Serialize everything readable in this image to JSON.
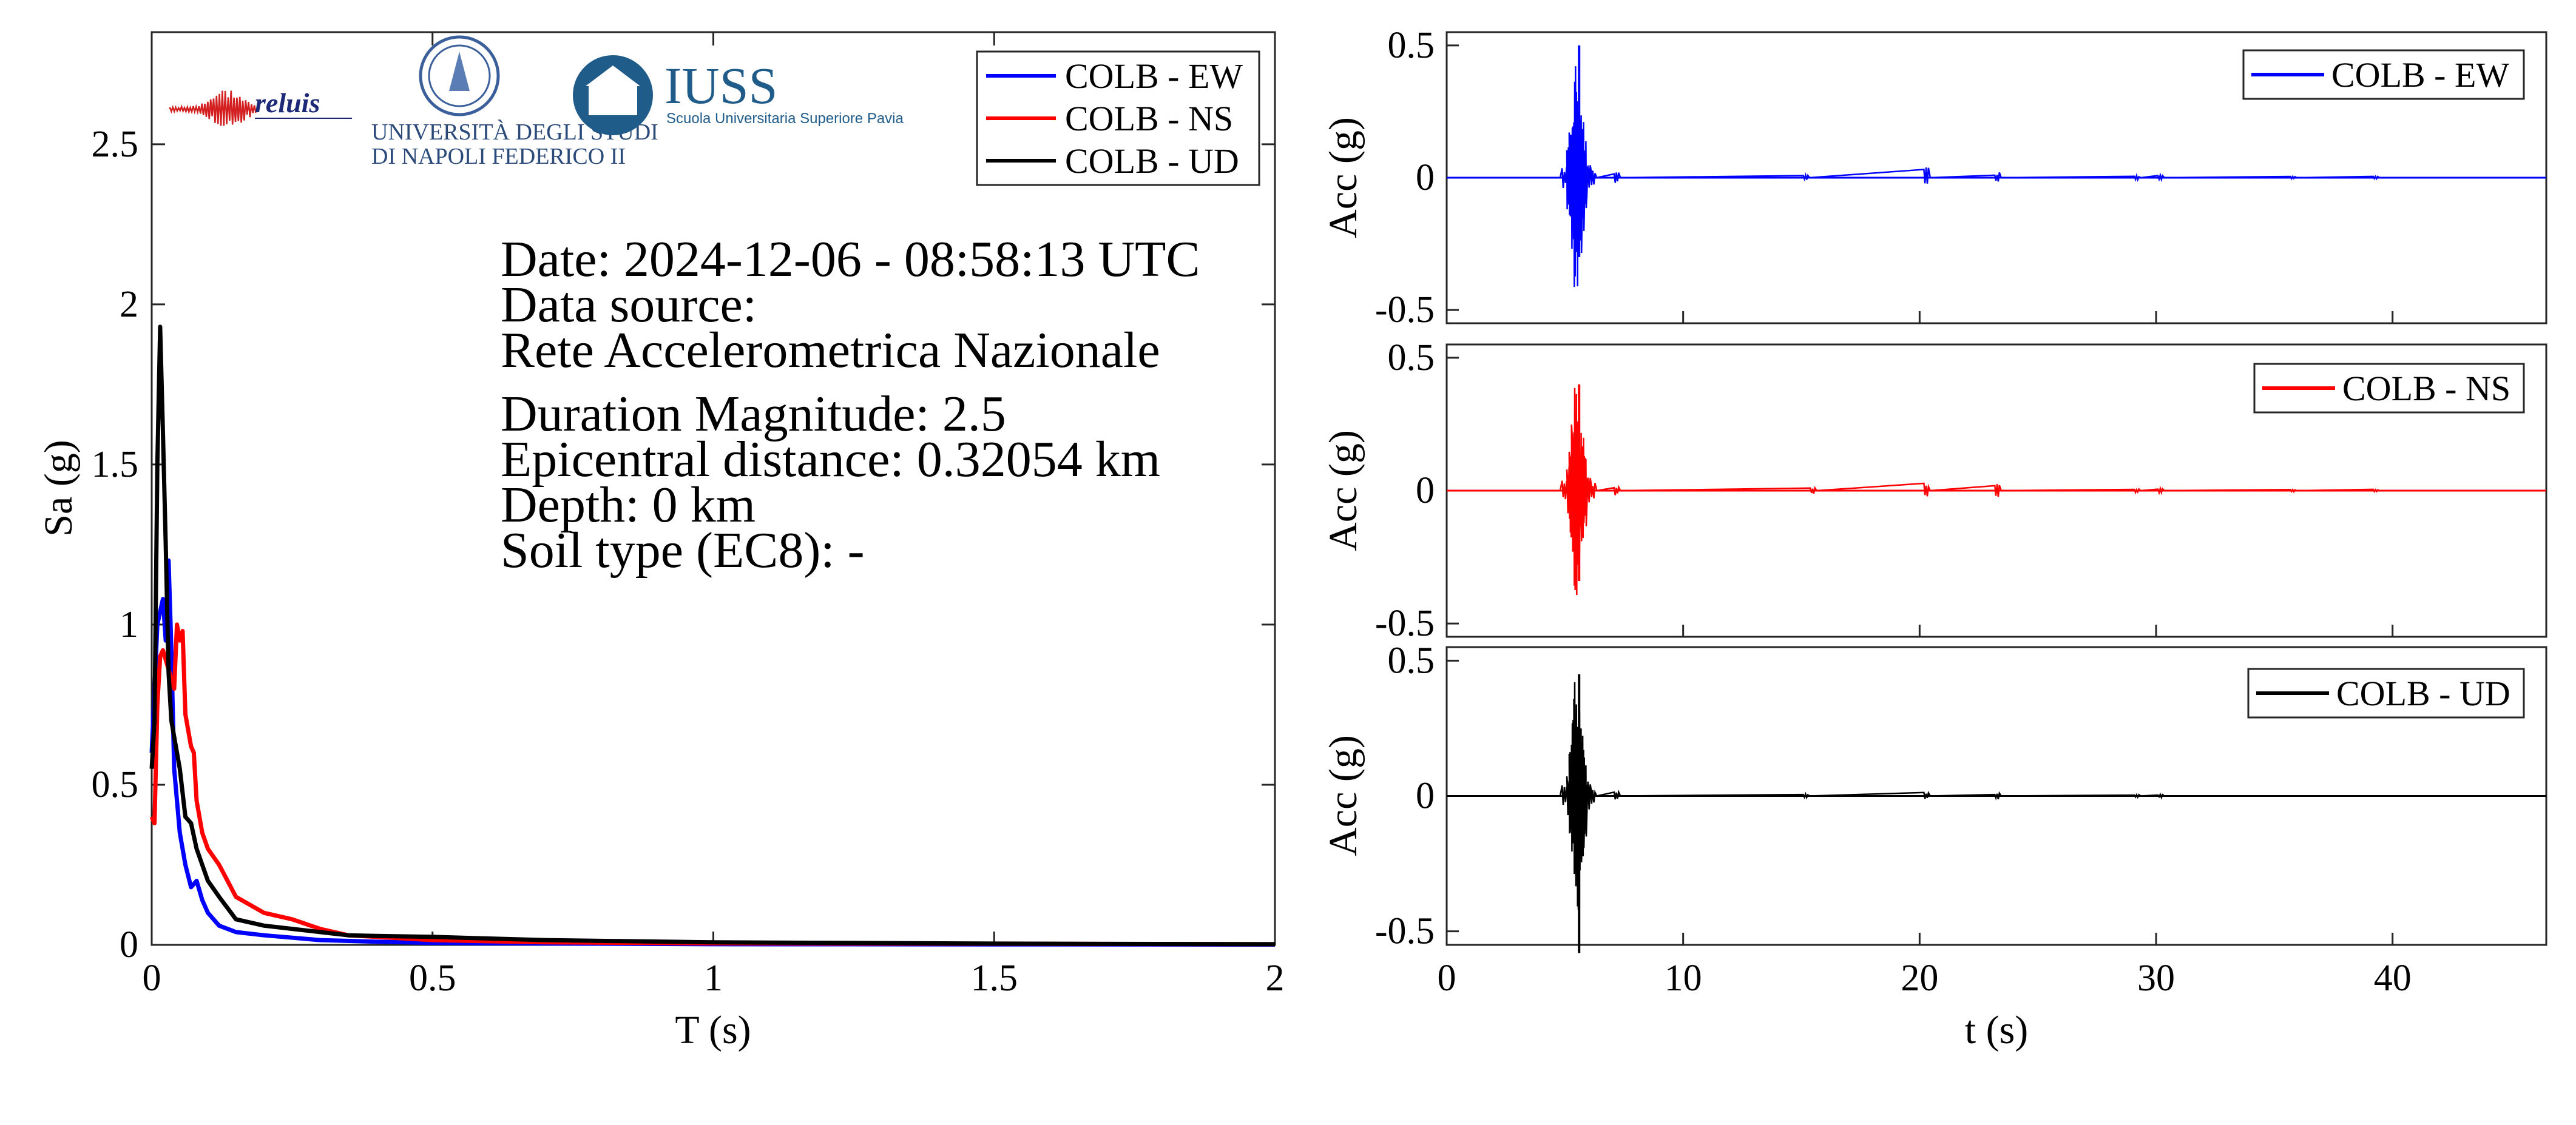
{
  "colors": {
    "ew": "#0000ff",
    "ns": "#ff0000",
    "ud": "#000000",
    "axis": "#262626",
    "iuss": "#1f5c8a",
    "reluis": "#1e2a78"
  },
  "logos": {
    "reluis_text": "reluis",
    "unina_line1": "UNIVERSITÀ DEGLI STUDI",
    "unina_line2": "DI NAPOLI FEDERICO II",
    "iuss_title": "IUSS",
    "iuss_subtitle": "Scuola Universitaria Superiore Pavia"
  },
  "info": {
    "date": "Date: 2024-12-06 - 08:58:13 UTC",
    "source_label": "Data source:",
    "source_value": "Rete Accelerometrica Nazionale",
    "magnitude": "Duration Magnitude: 2.5",
    "distance": "Epicentral distance: 0.32054 km",
    "depth": "Depth: 0 km",
    "soil": "Soil type (EC8): -"
  },
  "chart_data": [
    {
      "type": "line",
      "xlabel": "T (s)",
      "ylabel": "Sa (g)",
      "xlim": [
        0,
        2
      ],
      "ylim": [
        0,
        2.85
      ],
      "xticks": [
        0,
        0.5,
        1,
        1.5,
        2
      ],
      "xtick_labels": [
        "0",
        "0.5",
        "1",
        "1.5",
        "2"
      ],
      "yticks": [
        0,
        0.5,
        1,
        1.5,
        2,
        2.5
      ],
      "ytick_labels": [
        "0",
        "0.5",
        "1",
        "1.5",
        "2",
        "2.5"
      ],
      "legend": "top-right",
      "series": [
        {
          "name": "COLB - EW",
          "color": "#0000ff",
          "x": [
            0,
            0.01,
            0.02,
            0.025,
            0.03,
            0.035,
            0.04,
            0.05,
            0.06,
            0.07,
            0.08,
            0.09,
            0.1,
            0.12,
            0.15,
            0.2,
            0.3,
            0.4,
            0.5,
            1,
            2
          ],
          "y": [
            0.6,
            1.0,
            1.08,
            0.95,
            1.2,
            0.92,
            0.55,
            0.35,
            0.25,
            0.18,
            0.2,
            0.14,
            0.1,
            0.06,
            0.04,
            0.03,
            0.015,
            0.01,
            0.006,
            0.002,
            0.001
          ]
        },
        {
          "name": "COLB - NS",
          "color": "#ff0000",
          "x": [
            0,
            0.005,
            0.01,
            0.015,
            0.02,
            0.03,
            0.04,
            0.045,
            0.05,
            0.055,
            0.06,
            0.07,
            0.075,
            0.08,
            0.09,
            0.1,
            0.12,
            0.15,
            0.2,
            0.25,
            0.3,
            0.35,
            0.4,
            0.5,
            0.7,
            1,
            2
          ],
          "y": [
            0.4,
            0.38,
            0.75,
            0.9,
            0.92,
            0.86,
            0.8,
            1.0,
            0.95,
            0.98,
            0.72,
            0.62,
            0.6,
            0.45,
            0.35,
            0.3,
            0.25,
            0.15,
            0.1,
            0.08,
            0.05,
            0.03,
            0.025,
            0.015,
            0.008,
            0.005,
            0.002
          ]
        },
        {
          "name": "COLB - UD",
          "color": "#000000",
          "x": [
            0,
            0.005,
            0.01,
            0.015,
            0.02,
            0.025,
            0.03,
            0.035,
            0.04,
            0.05,
            0.06,
            0.07,
            0.08,
            0.09,
            0.1,
            0.12,
            0.15,
            0.2,
            0.25,
            0.3,
            0.35,
            0.4,
            0.5,
            0.7,
            1,
            1.5,
            2
          ],
          "y": [
            0.55,
            0.7,
            1.5,
            1.93,
            1.6,
            1.25,
            0.85,
            0.7,
            0.65,
            0.55,
            0.4,
            0.38,
            0.3,
            0.25,
            0.2,
            0.15,
            0.08,
            0.06,
            0.05,
            0.04,
            0.03,
            0.028,
            0.025,
            0.015,
            0.008,
            0.004,
            0.002
          ]
        }
      ]
    },
    {
      "type": "line",
      "xlabel": "",
      "ylabel": "Acc (g)",
      "xlim": [
        0,
        46.5
      ],
      "ylim": [
        -0.55,
        0.55
      ],
      "yticks": [
        -0.5,
        0,
        0.5
      ],
      "ytick_labels": [
        "-0.5",
        "0",
        "0.5"
      ],
      "legend": "top-right",
      "series": [
        {
          "name": "COLB - EW",
          "color": "#0000ff",
          "t": [
            5.0,
            5.2,
            5.3,
            5.4,
            5.5,
            5.6,
            5.7,
            5.8,
            5.9,
            6.0,
            6.2,
            7.2,
            15.2,
            20.3,
            23.3,
            29.2,
            30.2,
            35.8,
            39.3
          ],
          "amp": [
            0.04,
            0.12,
            0.2,
            0.28,
            0.45,
            0.3,
            0.22,
            0.15,
            0.08,
            0.05,
            0.03,
            0.02,
            0.01,
            0.04,
            0.02,
            0.008,
            0.01,
            0.005,
            0.005
          ],
          "peak_pos": 0.5,
          "peak_neg": -0.3
        }
      ]
    },
    {
      "type": "line",
      "xlabel": "",
      "ylabel": "Acc (g)",
      "xlim": [
        0,
        46.5
      ],
      "ylim": [
        -0.55,
        0.55
      ],
      "yticks": [
        -0.5,
        0,
        0.5
      ],
      "ytick_labels": [
        "-0.5",
        "0",
        "0.5"
      ],
      "legend": "top-right",
      "series": [
        {
          "name": "COLB - NS",
          "color": "#ff0000",
          "t": [
            5.0,
            5.2,
            5.3,
            5.4,
            5.5,
            5.6,
            5.7,
            5.8,
            5.9,
            6.0,
            6.2,
            7.2,
            15.5,
            20.3,
            23.3,
            29.2,
            30.2,
            35.8,
            39.3
          ],
          "amp": [
            0.04,
            0.1,
            0.18,
            0.26,
            0.4,
            0.28,
            0.2,
            0.14,
            0.08,
            0.05,
            0.03,
            0.02,
            0.012,
            0.03,
            0.025,
            0.008,
            0.01,
            0.005,
            0.005
          ],
          "peak_pos": 0.4,
          "peak_neg": -0.34
        }
      ]
    },
    {
      "type": "line",
      "xlabel": "t (s)",
      "ylabel": "Acc (g)",
      "xlim": [
        0,
        46.5
      ],
      "ylim": [
        -0.55,
        0.55
      ],
      "xticks": [
        0,
        10,
        20,
        30,
        40
      ],
      "xtick_labels": [
        "0",
        "10",
        "20",
        "30",
        "40"
      ],
      "yticks": [
        -0.5,
        0,
        0.5
      ],
      "ytick_labels": [
        "-0.5",
        "0",
        "0.5"
      ],
      "legend": "top-right",
      "series": [
        {
          "name": "COLB - UD",
          "color": "#000000",
          "t": [
            5.0,
            5.2,
            5.3,
            5.4,
            5.5,
            5.6,
            5.7,
            5.8,
            5.9,
            6.0,
            6.2,
            7.2,
            15.2,
            20.3,
            23.3,
            29.2,
            30.2
          ],
          "amp": [
            0.04,
            0.1,
            0.2,
            0.3,
            0.44,
            0.35,
            0.25,
            0.15,
            0.08,
            0.05,
            0.03,
            0.015,
            0.008,
            0.015,
            0.012,
            0.005,
            0.006
          ],
          "peak_pos": 0.45,
          "peak_neg": -0.58
        }
      ]
    }
  ]
}
